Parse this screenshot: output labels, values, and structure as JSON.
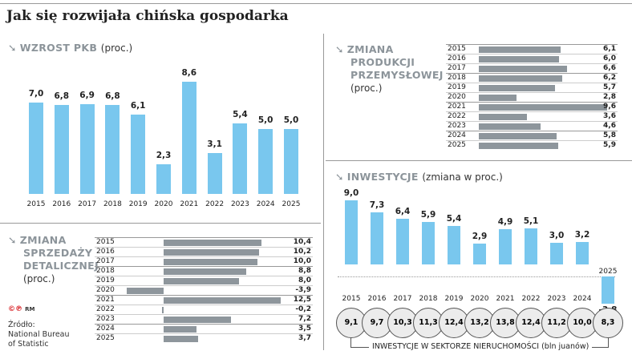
{
  "title": "Jak się rozwijała chińska gospodarka",
  "colors": {
    "gdp_bar": "#79c7ee",
    "table_bar": "#8e969c",
    "section_heading": "#8c949a",
    "logo": "#d9262b"
  },
  "gdp": {
    "heading": "WZROST PKB",
    "unit": "(proc.)"
  },
  "retail": {
    "heading1": "ZMIANA",
    "heading2": "SPRZEDAŻY",
    "heading3": "DETALICZNEJ",
    "unit": "(proc.)"
  },
  "industry": {
    "heading1": "ZMIANA",
    "heading2": "PRODUKCJI",
    "heading3": "PRZEMYSŁOWEJ",
    "unit": "(proc.)"
  },
  "investment": {
    "heading": "INWESTYCJE",
    "unit": "(zmiana w proc.)",
    "real_estate_caption": "INWESTYCJE W SEKTORZE NIERUCHOMOŚCI (bln juanów)"
  },
  "footer": {
    "logo": "©℗ RM",
    "source1": "Źródło:",
    "source2": "National Bureau",
    "source3": "of Statistic"
  },
  "chart_data": [
    {
      "type": "bar",
      "title": "WZROST PKB (proc.)",
      "categories": [
        "2015",
        "2016",
        "2017",
        "2018",
        "2019",
        "2020",
        "2021",
        "2022",
        "2023",
        "2024",
        "2025"
      ],
      "values": [
        7.0,
        6.8,
        6.9,
        6.8,
        6.1,
        2.3,
        8.6,
        3.1,
        5.4,
        5.0,
        5.0
      ],
      "labels": [
        "7,0",
        "6,8",
        "6,9",
        "6,8",
        "6,1",
        "2,3",
        "8,6",
        "3,1",
        "5,4",
        "5,0",
        "5,0"
      ]
    },
    {
      "type": "bar",
      "orientation": "horizontal",
      "title": "ZMIANA SPRZEDAŻY DETALICZNEJ (proc.)",
      "categories": [
        "2015",
        "2016",
        "2017",
        "2018",
        "2019",
        "2020",
        "2021",
        "2022",
        "2023",
        "2024",
        "2025"
      ],
      "values": [
        10.4,
        10.2,
        10.0,
        8.8,
        8.0,
        -3.9,
        12.5,
        -0.2,
        7.2,
        3.5,
        3.7
      ],
      "labels": [
        "10,4",
        "10,2",
        "10,0",
        "8,8",
        "8,0",
        "-3,9",
        "12,5",
        "-0,2",
        "7,2",
        "3,5",
        "3,7"
      ]
    },
    {
      "type": "bar",
      "orientation": "horizontal",
      "title": "ZMIANA PRODUKCJI PRZEMYSŁOWEJ (proc.)",
      "categories": [
        "2015",
        "2016",
        "2017",
        "2018",
        "2019",
        "2020",
        "2021",
        "2022",
        "2023",
        "2024",
        "2025"
      ],
      "values": [
        6.1,
        6.0,
        6.6,
        6.2,
        5.7,
        2.8,
        9.6,
        3.6,
        4.6,
        5.8,
        5.9
      ],
      "labels": [
        "6,1",
        "6,0",
        "6,6",
        "6,2",
        "5,7",
        "2,8",
        "9,6",
        "3,6",
        "4,6",
        "5,8",
        "5,9"
      ]
    },
    {
      "type": "bar",
      "title": "INWESTYCJE (zmiana w proc.)",
      "categories": [
        "2015",
        "2016",
        "2017",
        "2018",
        "2019",
        "2020",
        "2021",
        "2022",
        "2023",
        "2024",
        "2025"
      ],
      "values": [
        9.0,
        7.3,
        6.4,
        5.9,
        5.4,
        2.9,
        4.9,
        5.1,
        3.0,
        3.2,
        -3.8
      ],
      "labels": [
        "9,0",
        "7,3",
        "6,4",
        "5,9",
        "5,4",
        "2,9",
        "4,9",
        "5,1",
        "3,0",
        "3,2",
        "-3,8"
      ]
    },
    {
      "type": "table",
      "title": "INWESTYCJE W SEKTORZE NIERUCHOMOŚCI (bln juanów)",
      "categories": [
        "2015",
        "2016",
        "2017",
        "2018",
        "2019",
        "2020",
        "2021",
        "2022",
        "2023",
        "2024",
        "2025"
      ],
      "values": [
        9.1,
        9.7,
        10.3,
        11.3,
        12.4,
        13.2,
        13.8,
        12.4,
        11.2,
        10.0,
        8.3
      ],
      "labels": [
        "9,1",
        "9,7",
        "10,3",
        "11,3",
        "12,4",
        "13,2",
        "13,8",
        "12,4",
        "11,2",
        "10,0",
        "8,3"
      ]
    }
  ]
}
